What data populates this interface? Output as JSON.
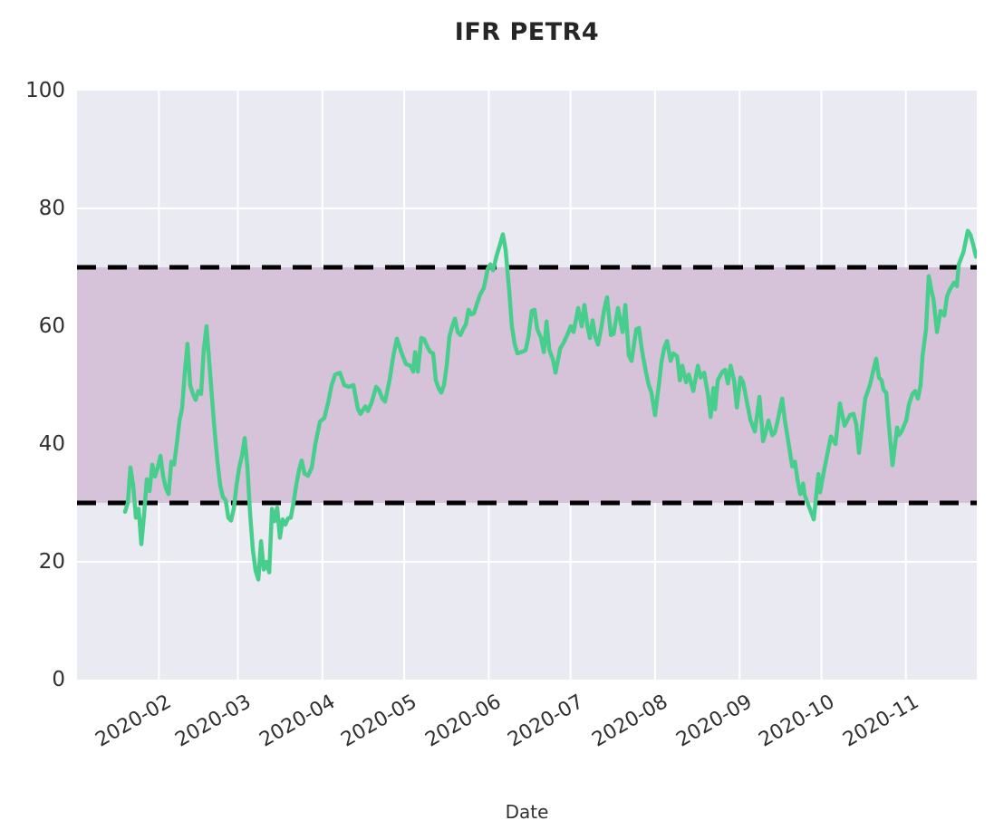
{
  "colors": {
    "figure_bg": "#ffffff",
    "plot_bg": "#eaeaf2",
    "grid": "#ffffff",
    "band": "#d6c3d9",
    "dashed_line": "#000000",
    "line": "#48ce8c",
    "tick_text": "#303030",
    "title_text": "#262626"
  },
  "chart_data": {
    "type": "line",
    "title": "IFR PETR4",
    "xlabel": "Date",
    "ylabel": "",
    "ylim": [
      0,
      100
    ],
    "yticks": [
      0,
      20,
      40,
      60,
      80,
      100
    ],
    "grid": "on",
    "legend": "none",
    "levels": {
      "overbought": 70,
      "oversold": 30
    },
    "band": {
      "from": 30,
      "to": 70
    },
    "x_axis": {
      "unit": "day_of_year_2020",
      "domain": [
        2,
        332
      ],
      "ticks": [
        {
          "day": 32,
          "label": "2020-02"
        },
        {
          "day": 61,
          "label": "2020-03"
        },
        {
          "day": 92,
          "label": "2020-04"
        },
        {
          "day": 122,
          "label": "2020-05"
        },
        {
          "day": 153,
          "label": "2020-06"
        },
        {
          "day": 183,
          "label": "2020-07"
        },
        {
          "day": 214,
          "label": "2020-08"
        },
        {
          "day": 245,
          "label": "2020-09"
        },
        {
          "day": 275,
          "label": "2020-10"
        },
        {
          "day": 306,
          "label": "2020-11"
        }
      ]
    },
    "series": [
      {
        "name": "IFR PETR4",
        "points": [
          [
            19.6,
            28.5
          ],
          [
            20.6,
            30
          ],
          [
            21.6,
            36
          ],
          [
            22.6,
            33
          ],
          [
            23.6,
            27.5
          ],
          [
            24.6,
            29
          ],
          [
            25.6,
            23
          ],
          [
            26.6,
            28
          ],
          [
            27.6,
            34
          ],
          [
            28.6,
            32
          ],
          [
            29.6,
            36.5
          ],
          [
            30.6,
            34.5
          ],
          [
            31.6,
            36
          ],
          [
            32.6,
            38
          ],
          [
            33.6,
            34.5
          ],
          [
            34.6,
            32.5
          ],
          [
            35.6,
            31.5
          ],
          [
            36.6,
            37
          ],
          [
            37.6,
            36.5
          ],
          [
            38.6,
            40
          ],
          [
            39.6,
            44
          ],
          [
            40.5,
            46
          ],
          [
            41.5,
            52
          ],
          [
            42.5,
            57
          ],
          [
            43.5,
            50
          ],
          [
            44.5,
            48.5
          ],
          [
            45.5,
            47.5
          ],
          [
            46.5,
            49
          ],
          [
            47.5,
            48.5
          ],
          [
            48.5,
            56
          ],
          [
            49.5,
            60
          ],
          [
            50.5,
            54
          ],
          [
            51.5,
            48
          ],
          [
            52.5,
            42
          ],
          [
            53.5,
            37
          ],
          [
            54.5,
            33
          ],
          [
            55.5,
            31
          ],
          [
            56.5,
            30.5
          ],
          [
            57.5,
            27.5
          ],
          [
            58.5,
            27
          ],
          [
            59.5,
            29
          ],
          [
            60.5,
            33
          ],
          [
            61.5,
            36
          ],
          [
            62.5,
            38
          ],
          [
            63.5,
            41
          ],
          [
            64.5,
            36
          ],
          [
            65.5,
            28
          ],
          [
            66.5,
            22
          ],
          [
            67.5,
            18.5
          ],
          [
            68.5,
            17
          ],
          [
            69.5,
            23.5
          ],
          [
            70.5,
            18.7
          ],
          [
            71.5,
            20
          ],
          [
            72.5,
            18.2
          ],
          [
            73.5,
            29
          ],
          [
            74.4,
            26.9
          ],
          [
            75.4,
            29.2
          ],
          [
            76.4,
            24.1
          ],
          [
            77.4,
            27.2
          ],
          [
            78.4,
            26.3
          ],
          [
            79.4,
            27.4
          ],
          [
            80.4,
            27.5
          ],
          [
            81.4,
            30
          ],
          [
            82.4,
            33
          ],
          [
            83.4,
            35.5
          ],
          [
            84.4,
            37.2
          ],
          [
            85.4,
            35
          ],
          [
            86.7,
            34.6
          ],
          [
            88.1,
            36
          ],
          [
            89.4,
            40
          ],
          [
            91.1,
            43.8
          ],
          [
            92.7,
            44.4
          ],
          [
            94.1,
            47
          ],
          [
            95.4,
            50
          ],
          [
            96.7,
            51.8
          ],
          [
            98.4,
            52.1
          ],
          [
            100,
            50
          ],
          [
            101.7,
            49.7
          ],
          [
            103.4,
            50
          ],
          [
            105,
            46
          ],
          [
            106,
            45.1
          ],
          [
            107.7,
            46.4
          ],
          [
            108.7,
            45.6
          ],
          [
            110,
            47
          ],
          [
            111.7,
            49.7
          ],
          [
            112.7,
            49.2
          ],
          [
            114,
            47.7
          ],
          [
            115,
            47.2
          ],
          [
            116.7,
            51
          ],
          [
            118,
            55
          ],
          [
            119.3,
            57.9
          ],
          [
            121,
            55.5
          ],
          [
            122.6,
            53.6
          ],
          [
            124.3,
            53.3
          ],
          [
            125.3,
            52.3
          ],
          [
            126,
            55.6
          ],
          [
            127,
            52.3
          ],
          [
            128.3,
            58
          ],
          [
            129.3,
            57.8
          ],
          [
            130.6,
            56.4
          ],
          [
            131.6,
            55.6
          ],
          [
            132.6,
            55.4
          ],
          [
            133.6,
            50.8
          ],
          [
            134.6,
            49.5
          ],
          [
            135.6,
            48.7
          ],
          [
            136.6,
            50
          ],
          [
            137.6,
            53.3
          ],
          [
            138.6,
            58.2
          ],
          [
            139.6,
            60
          ],
          [
            140.6,
            61.3
          ],
          [
            141.6,
            59
          ],
          [
            142.6,
            58.5
          ],
          [
            143.6,
            59.5
          ],
          [
            144.6,
            60.3
          ],
          [
            145.6,
            62.8
          ],
          [
            146.6,
            62
          ],
          [
            147.6,
            62.2
          ],
          [
            148.9,
            64.1
          ],
          [
            149.9,
            65.4
          ],
          [
            151.2,
            66.5
          ],
          [
            152.6,
            69.7
          ],
          [
            153.6,
            70.5
          ],
          [
            154.6,
            69.5
          ],
          [
            155.9,
            72
          ],
          [
            156.9,
            73.5
          ],
          [
            158.2,
            75.6
          ],
          [
            159.2,
            73
          ],
          [
            160.5,
            66.2
          ],
          [
            161.5,
            60
          ],
          [
            162.5,
            57
          ],
          [
            163.5,
            55.4
          ],
          [
            164.9,
            55.6
          ],
          [
            166.5,
            55.9
          ],
          [
            167.5,
            58
          ],
          [
            168.8,
            62.6
          ],
          [
            169.8,
            62.8
          ],
          [
            170.8,
            59.5
          ],
          [
            172.2,
            58
          ],
          [
            173.2,
            55.6
          ],
          [
            174.2,
            60.8
          ],
          [
            175.2,
            56
          ],
          [
            176.5,
            54.4
          ],
          [
            177.5,
            52.1
          ],
          [
            179.2,
            56.2
          ],
          [
            180.5,
            57.2
          ],
          [
            181.8,
            58.5
          ],
          [
            183.1,
            60
          ],
          [
            184.1,
            59
          ],
          [
            185.8,
            63.1
          ],
          [
            187.1,
            60
          ],
          [
            188.1,
            63.6
          ],
          [
            189.1,
            60.3
          ],
          [
            190.1,
            58
          ],
          [
            191.1,
            61
          ],
          [
            192.1,
            58.2
          ],
          [
            193.1,
            56.9
          ],
          [
            194.4,
            60
          ],
          [
            195.4,
            63
          ],
          [
            196.4,
            64.9
          ],
          [
            197.8,
            58.5
          ],
          [
            198.8,
            58.7
          ],
          [
            200.4,
            63.1
          ],
          [
            202.1,
            59
          ],
          [
            203.1,
            63.6
          ],
          [
            204.4,
            55
          ],
          [
            205.4,
            54.1
          ],
          [
            207.1,
            59.5
          ],
          [
            208.1,
            59.7
          ],
          [
            209.1,
            56.2
          ],
          [
            209.7,
            54.6
          ],
          [
            210.7,
            52.1
          ],
          [
            211.7,
            50
          ],
          [
            212.7,
            48.7
          ],
          [
            214,
            44.9
          ],
          [
            215.4,
            50
          ],
          [
            216.4,
            54
          ],
          [
            217.4,
            56.4
          ],
          [
            218.4,
            57.5
          ],
          [
            219.7,
            54.1
          ],
          [
            220.7,
            55.4
          ],
          [
            222.1,
            54.9
          ],
          [
            223.1,
            50.8
          ],
          [
            224,
            53.3
          ],
          [
            225.4,
            50.5
          ],
          [
            226.4,
            51.8
          ],
          [
            228,
            49
          ],
          [
            229.7,
            53.3
          ],
          [
            230.7,
            51.3
          ],
          [
            232,
            52.1
          ],
          [
            233.4,
            48.5
          ],
          [
            234.4,
            44.6
          ],
          [
            235.4,
            49.5
          ],
          [
            236,
            45.9
          ],
          [
            237,
            50.8
          ],
          [
            238.7,
            52.3
          ],
          [
            239.7,
            52.6
          ],
          [
            240.7,
            50.3
          ],
          [
            241.7,
            53.3
          ],
          [
            243,
            50.8
          ],
          [
            244,
            46.2
          ],
          [
            245.3,
            51.3
          ],
          [
            246.3,
            50.5
          ],
          [
            247.6,
            47.4
          ],
          [
            249,
            44.1
          ],
          [
            250.6,
            42.1
          ],
          [
            252.3,
            48
          ],
          [
            253.6,
            40.5
          ],
          [
            254.6,
            42
          ],
          [
            255.6,
            44
          ],
          [
            257,
            41.5
          ],
          [
            258,
            42
          ],
          [
            259,
            44
          ],
          [
            260.6,
            47.7
          ],
          [
            261.6,
            44
          ],
          [
            262.9,
            40.3
          ],
          [
            264.3,
            36.2
          ],
          [
            265.3,
            37
          ],
          [
            266.3,
            33.8
          ],
          [
            267.3,
            31.5
          ],
          [
            268.3,
            33.3
          ],
          [
            268.9,
            31.3
          ],
          [
            270.2,
            29.7
          ],
          [
            271.2,
            28.5
          ],
          [
            272.2,
            27.2
          ],
          [
            273.9,
            34.9
          ],
          [
            274.5,
            31.8
          ],
          [
            276.2,
            36
          ],
          [
            278.5,
            41.3
          ],
          [
            280.2,
            40
          ],
          [
            281.8,
            46.9
          ],
          [
            283.5,
            43.1
          ],
          [
            285.5,
            44.9
          ],
          [
            286.8,
            45.1
          ],
          [
            287.8,
            43.3
          ],
          [
            288.8,
            38.5
          ],
          [
            291.1,
            47.7
          ],
          [
            292.8,
            50
          ],
          [
            293.8,
            52
          ],
          [
            295.1,
            54.5
          ],
          [
            296.1,
            51.3
          ],
          [
            297.1,
            50.8
          ],
          [
            297.8,
            49.2
          ],
          [
            298.8,
            48.7
          ],
          [
            299.8,
            43
          ],
          [
            301.1,
            36.4
          ],
          [
            302.8,
            42.8
          ],
          [
            303.4,
            41.5
          ],
          [
            304.4,
            42.1
          ],
          [
            306.1,
            44
          ],
          [
            307.1,
            46.7
          ],
          [
            308.4,
            48.5
          ],
          [
            309.4,
            49
          ],
          [
            310.4,
            47.7
          ],
          [
            311.4,
            50
          ],
          [
            312.1,
            54.9
          ],
          [
            313.4,
            59.5
          ],
          [
            314.4,
            68.5
          ],
          [
            315.4,
            66
          ],
          [
            316.1,
            64.6
          ],
          [
            317.4,
            59
          ],
          [
            318.7,
            62.6
          ],
          [
            320.1,
            61.8
          ],
          [
            321.1,
            65.1
          ],
          [
            322.1,
            66.2
          ],
          [
            323.7,
            67.4
          ],
          [
            324.7,
            66.8
          ],
          [
            325.4,
            70.5
          ],
          [
            327.1,
            72.6
          ],
          [
            328.7,
            76.2
          ],
          [
            329.7,
            75.5
          ],
          [
            330.7,
            73.8
          ],
          [
            331.7,
            71.8
          ]
        ]
      }
    ]
  }
}
